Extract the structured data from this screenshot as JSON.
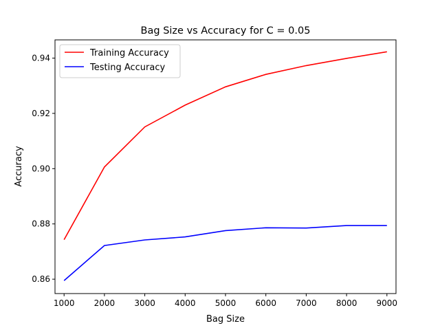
{
  "chart_data": {
    "type": "line",
    "title": "Bag Size vs Accuracy for C = 0.05",
    "xlabel": "Bag Size",
    "ylabel": "Accuracy",
    "x": [
      1000,
      2000,
      3000,
      4000,
      5000,
      6000,
      7000,
      8000,
      9000
    ],
    "xticks": [
      1000,
      2000,
      3000,
      4000,
      5000,
      6000,
      7000,
      8000,
      9000
    ],
    "yticks": [
      0.86,
      0.88,
      0.9,
      0.92,
      0.94
    ],
    "ytick_labels": [
      "0.86",
      "0.88",
      "0.90",
      "0.92",
      "0.94"
    ],
    "xlim": [
      775,
      9225
    ],
    "ylim": [
      0.8548,
      0.9466
    ],
    "grid": false,
    "legend_position": "upper-left",
    "series": [
      {
        "name": "Training Accuracy",
        "color": "#ff0000",
        "values": [
          0.8743,
          0.9006,
          0.9151,
          0.923,
          0.9296,
          0.9341,
          0.9373,
          0.9399,
          0.9423
        ]
      },
      {
        "name": "Testing Accuracy",
        "color": "#0000ff",
        "values": [
          0.8595,
          0.8722,
          0.8742,
          0.8753,
          0.8776,
          0.8786,
          0.8785,
          0.8794,
          0.8794
        ]
      }
    ]
  }
}
